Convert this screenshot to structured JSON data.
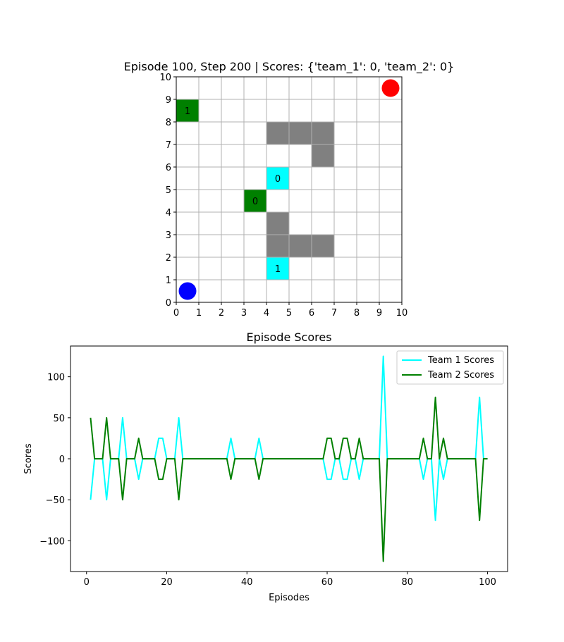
{
  "chart_data": [
    {
      "type": "grid",
      "title": "Episode 100, Step 200 | Scores: {'team_1': 0, 'team_2': 0}",
      "xlim": [
        0,
        10
      ],
      "ylim": [
        0,
        10
      ],
      "ticks": [
        0,
        1,
        2,
        3,
        4,
        5,
        6,
        7,
        8,
        9,
        10
      ],
      "grid": true,
      "obstacles": [
        [
          4,
          7
        ],
        [
          5,
          7
        ],
        [
          6,
          7
        ],
        [
          6,
          6
        ],
        [
          4,
          3
        ],
        [
          4,
          2
        ],
        [
          5,
          2
        ],
        [
          6,
          2
        ]
      ],
      "agents": [
        {
          "team": "green",
          "label": "1",
          "cell": [
            0,
            8
          ]
        },
        {
          "team": "green",
          "label": "0",
          "cell": [
            3,
            4
          ]
        },
        {
          "team": "cyan",
          "label": "0",
          "cell": [
            4,
            5
          ]
        },
        {
          "team": "cyan",
          "label": "1",
          "cell": [
            4,
            1
          ]
        }
      ],
      "bases": [
        {
          "color": "#ff0000",
          "center": [
            9.5,
            9.5
          ]
        },
        {
          "color": "#0000ff",
          "center": [
            0.5,
            0.5
          ]
        }
      ],
      "colors": {
        "obstacle": "#808080",
        "green": "#008000",
        "cyan": "#00ffff",
        "grid": "#b0b0b0"
      }
    },
    {
      "type": "line",
      "title": "Episode Scores",
      "xlabel": "Episodes",
      "ylabel": "Scores",
      "xlim": [
        -4,
        105
      ],
      "ylim": [
        -137.5,
        137.5
      ],
      "xticks": [
        0,
        20,
        40,
        60,
        80,
        100
      ],
      "yticks": [
        -100,
        -50,
        0,
        50,
        100
      ],
      "ytick_labels": [
        "−100",
        "−50",
        "0",
        "50",
        "100"
      ],
      "legend_position": "top-right",
      "x": [
        1,
        2,
        3,
        4,
        5,
        6,
        7,
        8,
        9,
        10,
        11,
        12,
        13,
        14,
        15,
        16,
        17,
        18,
        19,
        20,
        21,
        22,
        23,
        24,
        25,
        26,
        27,
        28,
        29,
        30,
        31,
        32,
        33,
        34,
        35,
        36,
        37,
        38,
        39,
        40,
        41,
        42,
        43,
        44,
        45,
        46,
        47,
        48,
        49,
        50,
        51,
        52,
        53,
        54,
        55,
        56,
        57,
        58,
        59,
        60,
        61,
        62,
        63,
        64,
        65,
        66,
        67,
        68,
        69,
        70,
        71,
        72,
        73,
        74,
        75,
        76,
        77,
        78,
        79,
        80,
        81,
        82,
        83,
        84,
        85,
        86,
        87,
        88,
        89,
        90,
        91,
        92,
        93,
        94,
        95,
        96,
        97,
        98,
        99,
        100
      ],
      "series": [
        {
          "name": "Team 1 Scores",
          "color": "#00ffff",
          "values": [
            -50,
            0,
            0,
            0,
            -50,
            0,
            0,
            0,
            50,
            0,
            0,
            0,
            -25,
            0,
            0,
            0,
            0,
            25,
            25,
            0,
            0,
            0,
            50,
            0,
            0,
            0,
            0,
            0,
            0,
            0,
            0,
            0,
            0,
            0,
            0,
            25,
            0,
            0,
            0,
            0,
            0,
            0,
            25,
            0,
            0,
            0,
            0,
            0,
            0,
            0,
            0,
            0,
            0,
            0,
            0,
            0,
            0,
            0,
            0,
            -25,
            -25,
            0,
            0,
            -25,
            -25,
            0,
            0,
            -25,
            0,
            0,
            0,
            0,
            0,
            125,
            0,
            0,
            0,
            0,
            0,
            0,
            0,
            0,
            0,
            -25,
            0,
            0,
            -75,
            0,
            -25,
            0,
            0,
            0,
            0,
            0,
            0,
            0,
            0,
            75,
            0,
            0
          ]
        },
        {
          "name": "Team 2 Scores",
          "color": "#008000",
          "values": [
            50,
            0,
            0,
            0,
            50,
            0,
            0,
            0,
            -50,
            0,
            0,
            0,
            25,
            0,
            0,
            0,
            0,
            -25,
            -25,
            0,
            0,
            0,
            -50,
            0,
            0,
            0,
            0,
            0,
            0,
            0,
            0,
            0,
            0,
            0,
            0,
            -25,
            0,
            0,
            0,
            0,
            0,
            0,
            -25,
            0,
            0,
            0,
            0,
            0,
            0,
            0,
            0,
            0,
            0,
            0,
            0,
            0,
            0,
            0,
            0,
            25,
            25,
            0,
            0,
            25,
            25,
            0,
            0,
            25,
            0,
            0,
            0,
            0,
            0,
            -125,
            0,
            0,
            0,
            0,
            0,
            0,
            0,
            0,
            0,
            25,
            0,
            0,
            75,
            0,
            25,
            0,
            0,
            0,
            0,
            0,
            0,
            0,
            0,
            -75,
            0,
            0
          ]
        }
      ]
    }
  ]
}
